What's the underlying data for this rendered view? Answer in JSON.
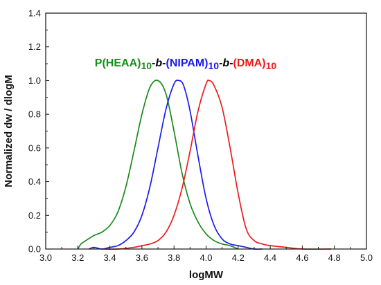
{
  "chart_data": {
    "type": "line",
    "title": "",
    "xlabel": "logMW",
    "ylabel": "Normalized dw / dlogM",
    "xlim": [
      3.0,
      5.0
    ],
    "ylim": [
      0.0,
      1.4
    ],
    "xticks": [
      "3.0",
      "3.2",
      "3.4",
      "3.6",
      "3.8",
      "4.0",
      "4.2",
      "4.4",
      "4.6",
      "4.8",
      "5.0"
    ],
    "yticks": [
      "0.0",
      "0.2",
      "0.4",
      "0.6",
      "0.8",
      "1.0",
      "1.2",
      "1.4"
    ],
    "grid": false,
    "legend": {
      "placement": "top-center",
      "parts": [
        {
          "text": "P(HEAA)",
          "color": "#1a8a1a",
          "style": "normal",
          "sub": false
        },
        {
          "text": "10",
          "color": "#1a8a1a",
          "style": "normal",
          "sub": true
        },
        {
          "text": "-",
          "color": "#000000",
          "style": "normal",
          "sub": false
        },
        {
          "text": "b",
          "color": "#000000",
          "style": "italic",
          "sub": false
        },
        {
          "text": "-",
          "color": "#000000",
          "style": "normal",
          "sub": false
        },
        {
          "text": "(NIPAM)",
          "color": "#1a1aee",
          "style": "normal",
          "sub": false
        },
        {
          "text": "10",
          "color": "#1a1aee",
          "style": "normal",
          "sub": true
        },
        {
          "text": "-",
          "color": "#000000",
          "style": "normal",
          "sub": false
        },
        {
          "text": "b",
          "color": "#000000",
          "style": "italic",
          "sub": false
        },
        {
          "text": "-",
          "color": "#000000",
          "style": "normal",
          "sub": false
        },
        {
          "text": "(DMA)",
          "color": "#ee1a1a",
          "style": "normal",
          "sub": false
        },
        {
          "text": "10",
          "color": "#ee1a1a",
          "style": "normal",
          "sub": true
        }
      ]
    },
    "series": [
      {
        "color": "#1a8a1a",
        "x": [
          3.2,
          3.22,
          3.25,
          3.3,
          3.35,
          3.4,
          3.45,
          3.5,
          3.55,
          3.6,
          3.65,
          3.7,
          3.75,
          3.8,
          3.85,
          3.9,
          3.95,
          4.0,
          4.05,
          4.1,
          4.15,
          4.2
        ],
        "y": [
          0.0,
          0.03,
          0.05,
          0.08,
          0.1,
          0.14,
          0.22,
          0.37,
          0.58,
          0.8,
          0.96,
          1.0,
          0.92,
          0.7,
          0.45,
          0.27,
          0.16,
          0.09,
          0.05,
          0.03,
          0.02,
          0.0
        ]
      },
      {
        "color": "#1a1aee",
        "x": [
          3.27,
          3.3,
          3.35,
          3.4,
          3.45,
          3.5,
          3.55,
          3.6,
          3.65,
          3.7,
          3.75,
          3.8,
          3.83,
          3.86,
          3.9,
          3.95,
          4.0,
          4.05,
          4.1,
          4.15,
          4.2,
          4.25,
          4.3,
          4.35
        ],
        "y": [
          0.0,
          0.01,
          0.0,
          0.01,
          0.02,
          0.05,
          0.1,
          0.2,
          0.37,
          0.6,
          0.83,
          0.98,
          1.0,
          0.97,
          0.82,
          0.55,
          0.3,
          0.14,
          0.06,
          0.03,
          0.02,
          0.01,
          0.0,
          0.0
        ]
      },
      {
        "color": "#ee1a1a",
        "x": [
          3.35,
          3.45,
          3.55,
          3.6,
          3.65,
          3.7,
          3.75,
          3.8,
          3.85,
          3.9,
          3.95,
          4.0,
          4.02,
          4.05,
          4.1,
          4.15,
          4.2,
          4.25,
          4.3,
          4.35,
          4.4,
          4.5,
          4.6,
          4.78
        ],
        "y": [
          0.0,
          0.0,
          0.01,
          0.02,
          0.03,
          0.05,
          0.1,
          0.2,
          0.36,
          0.58,
          0.82,
          0.98,
          1.0,
          0.97,
          0.84,
          0.6,
          0.33,
          0.12,
          0.05,
          0.03,
          0.02,
          0.01,
          0.0,
          0.0
        ]
      }
    ]
  }
}
